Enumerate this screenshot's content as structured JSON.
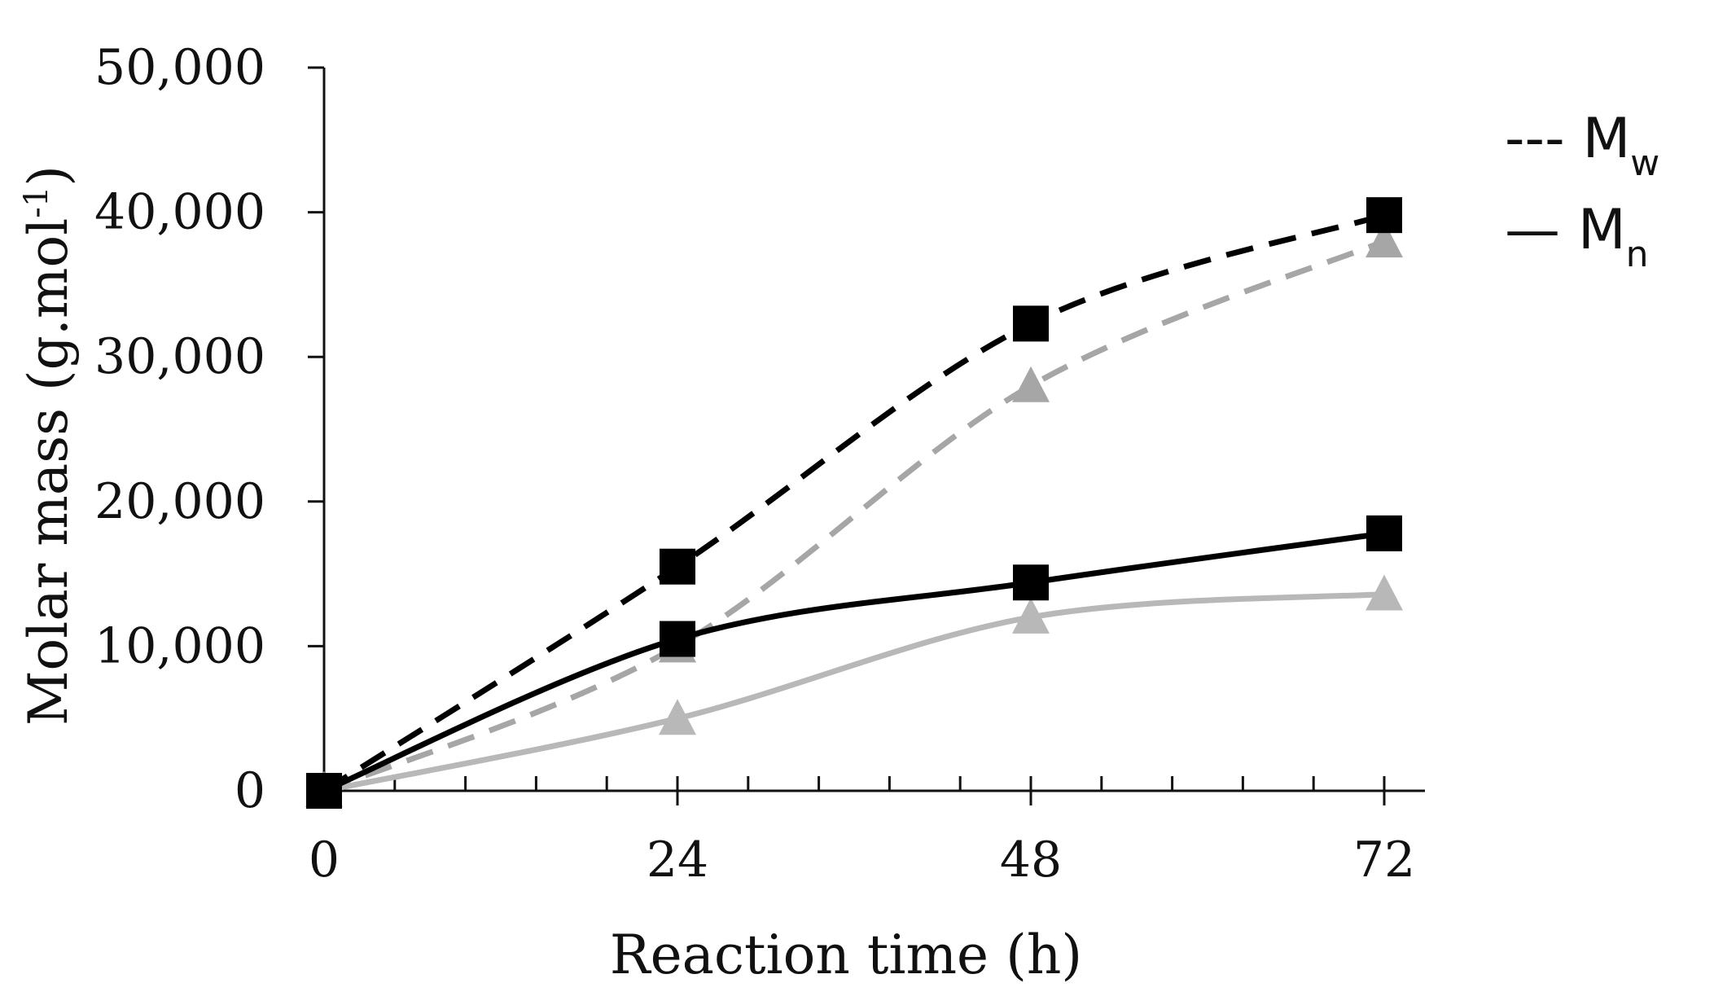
{
  "chart_data": {
    "type": "line",
    "title": "",
    "xlabel": "Reaction time (h)",
    "ylabel": "Molar mass (g.mol",
    "ylabel_sup": "-1",
    "ylabel_close": ")",
    "x": [
      0,
      24,
      48,
      72
    ],
    "xlim": [
      0,
      72
    ],
    "ylim": [
      0,
      50000
    ],
    "x_ticks": [
      0,
      24,
      48,
      72
    ],
    "y_ticks": [
      0,
      10000,
      20000,
      30000,
      40000,
      50000
    ],
    "x_tick_labels": [
      "0",
      "24",
      "48",
      "72"
    ],
    "y_tick_labels": [
      "0",
      "10,000",
      "20,000",
      "30,000",
      "40,000",
      "50,000"
    ],
    "minor_x_tick_step": 4.8,
    "legend": {
      "position": "top-right",
      "entries": [
        {
          "symbol": "---",
          "label": "M",
          "sub": "w"
        },
        {
          "symbol": "—",
          "label": "M",
          "sub": "n"
        }
      ]
    },
    "series": [
      {
        "name": "Mw (squares)",
        "quantity": "Mw",
        "marker": "square",
        "color": "#000000",
        "dash": "dashed",
        "values": [
          0,
          15500,
          32300,
          39800
        ]
      },
      {
        "name": "Mw (triangles)",
        "quantity": "Mw",
        "marker": "triangle",
        "color": "#a6a6a6",
        "dash": "dashed",
        "values": [
          0,
          10000,
          28000,
          38000
        ]
      },
      {
        "name": "Mn (squares)",
        "quantity": "Mn",
        "marker": "square",
        "color": "#000000",
        "dash": "solid",
        "values": [
          0,
          10500,
          14400,
          17800
        ]
      },
      {
        "name": "Mn (triangles)",
        "quantity": "Mn",
        "marker": "triangle",
        "color": "#b8b8b8",
        "dash": "solid",
        "values": [
          0,
          5000,
          12000,
          13600
        ]
      }
    ]
  }
}
